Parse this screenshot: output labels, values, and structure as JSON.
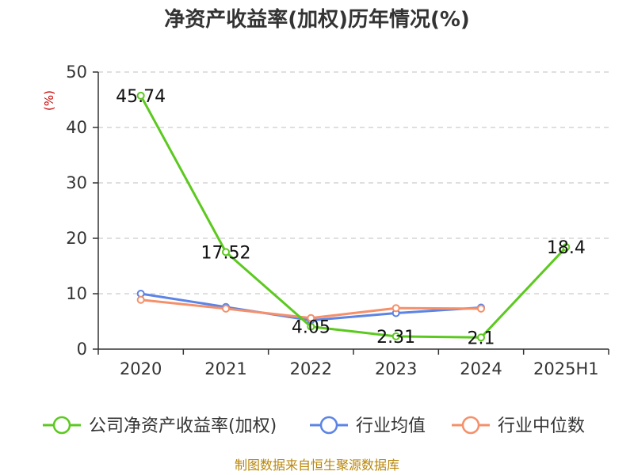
{
  "chart_data": {
    "type": "line",
    "title": "净资产收益率(加权)历年情况(%)",
    "ylabel": "(%)",
    "xlabel": "",
    "categories": [
      "2020",
      "2021",
      "2022",
      "2023",
      "2024",
      "2025H1"
    ],
    "ylim": [
      0,
      50
    ],
    "yticks": [
      0,
      10,
      20,
      30,
      40,
      50
    ],
    "grid": true,
    "legend_position": "bottom",
    "series": [
      {
        "name": "公司净资产收益率(加权)",
        "color": "#5cc91f",
        "values": [
          45.74,
          17.52,
          4.05,
          2.31,
          2.1,
          18.4
        ],
        "labels": [
          "45.74",
          "17.52",
          "4.05",
          "2.31",
          "2.1",
          "18.4"
        ]
      },
      {
        "name": "行业均值",
        "color": "#5b84e6",
        "values": [
          10.0,
          7.6,
          5.2,
          6.5,
          7.5,
          null
        ]
      },
      {
        "name": "行业中位数",
        "color": "#f5906a",
        "values": [
          8.9,
          7.3,
          5.6,
          7.4,
          7.3,
          null
        ]
      }
    ]
  },
  "footer": {
    "source": "制图数据来自恒生聚源数据库"
  }
}
